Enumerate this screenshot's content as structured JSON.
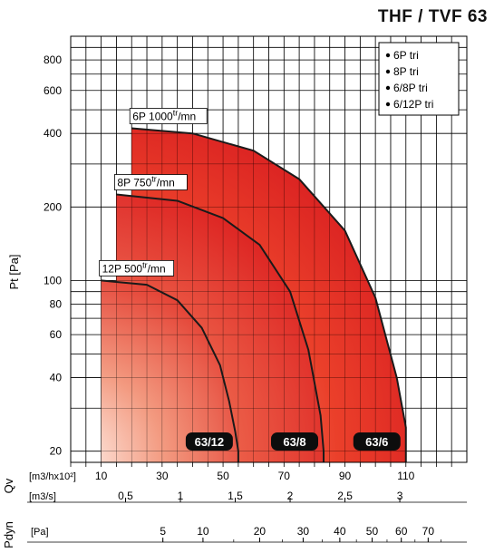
{
  "title": "THF / TVF 63",
  "legend": [
    {
      "label": "6P  tri"
    },
    {
      "label": "8P  tri"
    },
    {
      "label": "6/8P  tri"
    },
    {
      "label": "6/12P  tri"
    }
  ],
  "chart_data": {
    "type": "area",
    "title": "THF / TVF 63",
    "ylabel": "Pt [Pa]",
    "yscale": "log",
    "ylim": [
      18,
      1000
    ],
    "yticks": [
      20,
      40,
      60,
      80,
      100,
      200,
      400,
      600,
      800
    ],
    "xlabel": "[m3/hx10²]",
    "xlim": [
      0,
      130
    ],
    "xticks": [
      10,
      30,
      50,
      70,
      90,
      110
    ],
    "flow_axis": {
      "label_top": "[m3/hx10²]",
      "label_bottom": "[m3/s]",
      "side_label": "Qv",
      "ticks_m3s": [
        {
          "value": 0.5,
          "label": "0.5"
        },
        {
          "value": 1,
          "label": "1"
        },
        {
          "value": 1.5,
          "label": "1.5"
        },
        {
          "value": 2,
          "label": "2"
        },
        {
          "value": 2.5,
          "label": "2.5"
        },
        {
          "value": 3,
          "label": "3"
        }
      ]
    },
    "pdyn_axis": {
      "side_label": "Pdyn",
      "unit_label": "[Pa]",
      "ticks": [
        5,
        10,
        20,
        30,
        40,
        50,
        60,
        70
      ]
    },
    "series": [
      {
        "curve_label": "6P  1000",
        "speed_sup": "tr",
        "speed_unit": "/mn",
        "badge": "63/6",
        "x": [
          20,
          40,
          60,
          75,
          90,
          100,
          107,
          110,
          110
        ],
        "y": [
          420,
          400,
          340,
          260,
          160,
          85,
          40,
          25,
          18
        ]
      },
      {
        "curve_label": "8P  750",
        "speed_sup": "tr",
        "speed_unit": "/mn",
        "badge": "63/8",
        "x": [
          15,
          35,
          50,
          62,
          72,
          78,
          82,
          83,
          83
        ],
        "y": [
          225,
          212,
          180,
          140,
          90,
          52,
          28,
          20,
          18
        ]
      },
      {
        "curve_label": "12P  500",
        "speed_sup": "tr",
        "speed_unit": "/mn",
        "badge": "63/12",
        "x": [
          10,
          25,
          35,
          43,
          49,
          52,
          54,
          55,
          55
        ],
        "y": [
          100,
          96,
          83,
          64,
          45,
          32,
          24,
          20,
          18
        ]
      }
    ]
  }
}
